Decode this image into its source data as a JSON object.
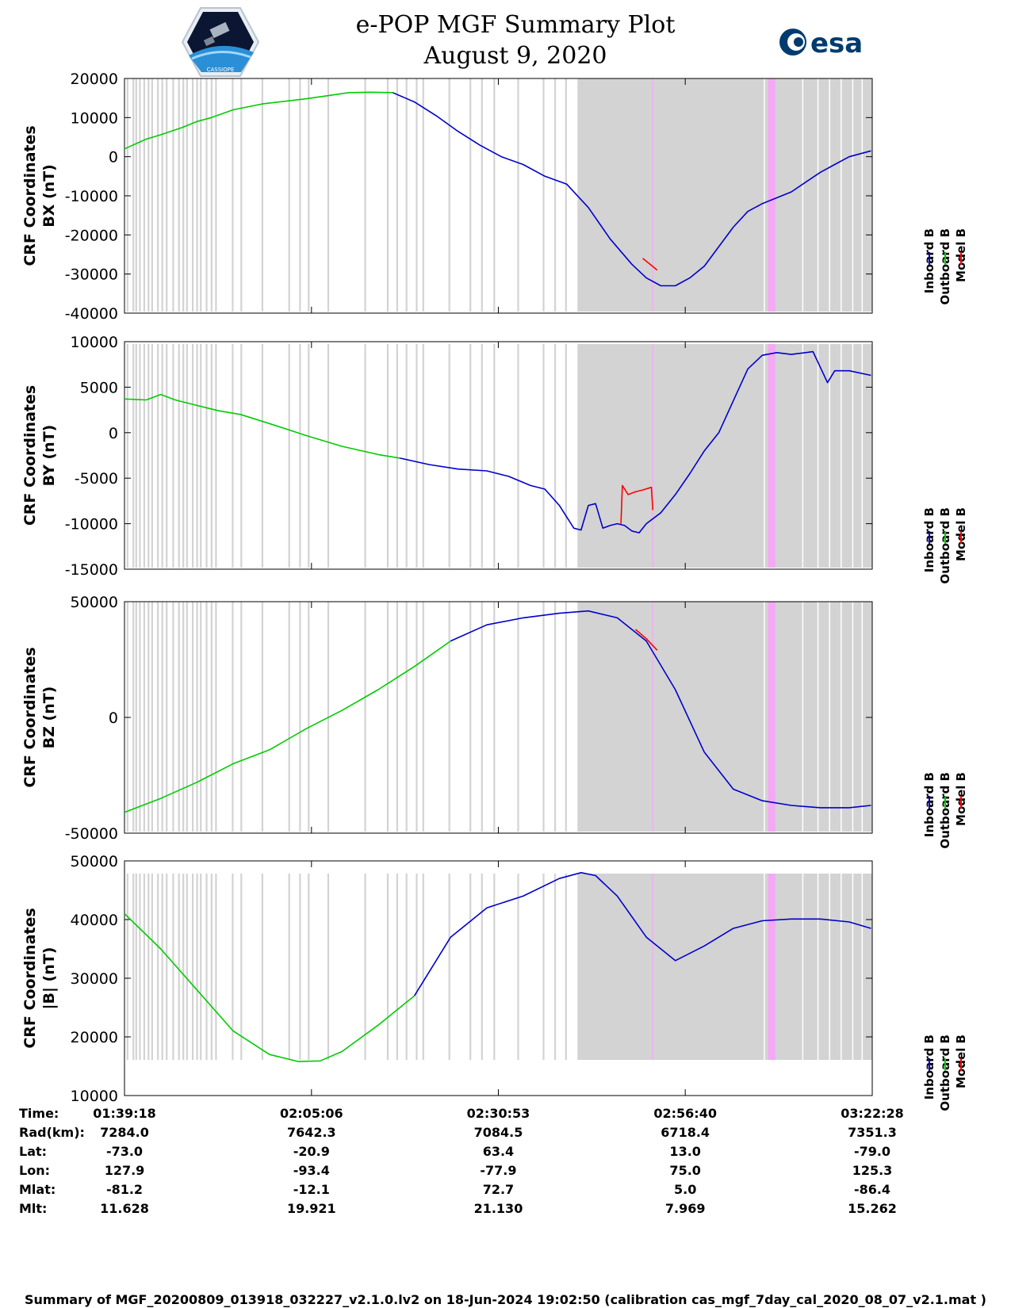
{
  "header": {
    "title_line1": "e-POP MGF Summary Plot",
    "title_line2": "August 9, 2020",
    "logo_left": "CASSIOPE",
    "logo_right": "esa"
  },
  "chart_data": [
    {
      "type": "line",
      "panel": "BX",
      "ylabel_line1": "CRF Coordinates",
      "ylabel_line2": "BX (nT)",
      "ylim": [
        -40000,
        20000
      ],
      "yticks": [
        20000,
        10000,
        0,
        -10000,
        -20000,
        -30000,
        -40000
      ],
      "xlim_minutes": [
        0,
        103.17
      ],
      "legend": [
        "Inboard B",
        "Outboard B",
        "Model B"
      ],
      "series": [
        {
          "name": "Outboard B",
          "color": "#00cc00",
          "x": [
            0,
            3,
            5,
            8,
            10,
            12,
            15,
            19,
            25,
            31,
            34,
            37
          ],
          "y": [
            2000,
            4500,
            5600,
            7500,
            9000,
            10000,
            12000,
            13500,
            14800,
            16400,
            16500,
            16400
          ]
        },
        {
          "name": "Inboard B",
          "color": "#0000cc",
          "x": [
            37,
            40,
            43,
            46,
            49,
            52,
            55,
            58,
            61,
            64,
            67,
            70,
            72,
            74,
            76,
            78,
            80,
            82,
            84,
            86,
            88,
            90,
            92,
            94,
            96,
            98,
            100,
            103
          ],
          "y": [
            16400,
            14000,
            10500,
            6500,
            3000,
            0,
            -2000,
            -5000,
            -7000,
            -13000,
            -21000,
            -27500,
            -31000,
            -33000,
            -33000,
            -31000,
            -28000,
            -23000,
            -18000,
            -14000,
            -12000,
            -10500,
            -9000,
            -6500,
            -4000,
            -2000,
            0,
            1500
          ]
        },
        {
          "name": "Model B",
          "color": "#ff0000",
          "x": [
            71.5,
            72.5,
            73.5
          ],
          "y": [
            -26000,
            -27500,
            -29000
          ]
        }
      ]
    },
    {
      "type": "line",
      "panel": "BY",
      "ylabel_line1": "CRF Coordinates",
      "ylabel_line2": "BY (nT)",
      "ylim": [
        -15000,
        10000
      ],
      "yticks": [
        10000,
        5000,
        0,
        -5000,
        -10000,
        -15000
      ],
      "xlim_minutes": [
        0,
        103.17
      ],
      "legend": [
        "Inboard B",
        "Outboard B",
        "Model B"
      ],
      "series": [
        {
          "name": "Outboard B",
          "color": "#00cc00",
          "x": [
            0,
            3,
            5,
            7,
            9,
            11,
            13,
            16,
            20,
            25,
            30,
            35,
            38
          ],
          "y": [
            3700,
            3600,
            4200,
            3600,
            3200,
            2800,
            2400,
            2000,
            1000,
            -300,
            -1500,
            -2400,
            -2800
          ]
        },
        {
          "name": "Inboard B",
          "color": "#0000cc",
          "x": [
            38,
            42,
            46,
            50,
            53,
            56,
            58,
            60,
            62,
            63,
            64,
            65,
            66,
            67,
            68,
            69,
            70,
            71,
            72,
            74,
            76,
            78,
            80,
            82,
            84,
            86,
            88,
            90,
            92,
            95,
            97,
            98,
            100,
            103
          ],
          "y": [
            -2800,
            -3500,
            -4000,
            -4200,
            -4800,
            -5800,
            -6200,
            -8000,
            -10500,
            -10700,
            -8000,
            -7800,
            -10500,
            -10200,
            -10000,
            -10200,
            -10800,
            -11000,
            -10000,
            -8800,
            -6800,
            -4500,
            -2000,
            0,
            3500,
            7000,
            8500,
            8800,
            8600,
            8900,
            5500,
            6800,
            6800,
            6300
          ]
        },
        {
          "name": "Model B",
          "color": "#ff0000",
          "x": [
            68.5,
            68.7,
            69.5,
            70.5,
            71.5,
            72.7,
            72.9
          ],
          "y": [
            -10000,
            -5800,
            -6800,
            -6500,
            -6300,
            -6000,
            -8500
          ]
        }
      ]
    },
    {
      "type": "line",
      "panel": "BZ",
      "ylabel_line1": "CRF Coordinates",
      "ylabel_line2": "BZ (nT)",
      "ylim": [
        -50000,
        50000
      ],
      "yticks": [
        50000,
        0,
        -50000
      ],
      "xlim_minutes": [
        0,
        103.17
      ],
      "legend": [
        "Inboard B",
        "Outboard B",
        "Model B"
      ],
      "series": [
        {
          "name": "Outboard B",
          "color": "#00cc00",
          "x": [
            0,
            5,
            10,
            15,
            20,
            25,
            30,
            35,
            40,
            45
          ],
          "y": [
            -41000,
            -35000,
            -28000,
            -20000,
            -14000,
            -5000,
            3000,
            12000,
            22000,
            33000
          ]
        },
        {
          "name": "Inboard B",
          "color": "#0000cc",
          "x": [
            45,
            50,
            55,
            60,
            64,
            68,
            72,
            76,
            80,
            84,
            88,
            92,
            96,
            100,
            103
          ],
          "y": [
            33000,
            40000,
            43000,
            45000,
            46000,
            43000,
            33000,
            12000,
            -15000,
            -31000,
            -36000,
            -38000,
            -39000,
            -39000,
            -38000
          ]
        },
        {
          "name": "Model B",
          "color": "#ff0000",
          "x": [
            70.5,
            72,
            73.5
          ],
          "y": [
            38000,
            34000,
            29000
          ]
        }
      ]
    },
    {
      "type": "line",
      "panel": "|B|",
      "ylabel_line1": "CRF Coordinates",
      "ylabel_line2": "|B| (nT)",
      "ylim": [
        10000,
        50000
      ],
      "yticks": [
        50000,
        40000,
        30000,
        20000,
        10000
      ],
      "xlim_minutes": [
        0,
        103.17
      ],
      "legend": [
        "Inboard B",
        "Outboard B",
        "Model B"
      ],
      "series": [
        {
          "name": "Outboard B",
          "color": "#00cc00",
          "x": [
            0,
            5,
            10,
            15,
            20,
            24,
            27,
            30,
            35,
            40
          ],
          "y": [
            41000,
            35000,
            28000,
            21000,
            17000,
            15800,
            15900,
            17500,
            22000,
            27000
          ]
        },
        {
          "name": "Inboard B",
          "color": "#0000cc",
          "x": [
            40,
            45,
            50,
            55,
            60,
            63,
            65,
            68,
            72,
            76,
            80,
            84,
            88,
            92,
            96,
            100,
            103
          ],
          "y": [
            27000,
            37000,
            42000,
            44000,
            47000,
            48000,
            47500,
            44000,
            37000,
            33000,
            35500,
            38500,
            39800,
            40100,
            40100,
            39600,
            38500
          ]
        }
      ]
    }
  ],
  "time_axis": {
    "tick_minutes": [
      0,
      25.8,
      51.58,
      77.37,
      103.17
    ]
  },
  "shading": {
    "color": "#d3d3d3",
    "highlight_color": "#f5a8f5",
    "highlight_band_minutes": [
      88.8,
      89.8
    ],
    "thin_line_minutes": 72.8,
    "dense_band_minutes": [
      62.5,
      103.17
    ],
    "stripe_minutes": [
      0.3,
      1.1,
      1.5,
      2.0,
      2.6,
      3.2,
      3.7,
      4.5,
      5.1,
      5.7,
      6.6,
      7.4,
      8.0,
      8.5,
      9.3,
      9.9,
      10.4,
      11.2,
      11.9,
      12.5,
      14.8,
      16.0,
      18.9,
      22.6,
      24.1,
      25.3,
      28.0,
      33.1,
      36.2,
      37.5,
      38.8,
      40.2,
      41.1,
      44.7,
      47.6,
      49.2,
      50.9,
      54.2,
      57.7,
      59.3,
      60.8
    ]
  },
  "table": {
    "row_labels": [
      "Time:",
      "Rad(km):",
      "Lat:",
      "Lon:",
      "Mlat:",
      "Mlt:"
    ],
    "columns": [
      [
        "01:39:18",
        "7284.0",
        "-73.0",
        "127.9",
        "-81.2",
        "11.628"
      ],
      [
        "02:05:06",
        "7642.3",
        "-20.9",
        "-93.4",
        "-12.1",
        "19.921"
      ],
      [
        "02:30:53",
        "7084.5",
        "63.4",
        "-77.9",
        "72.7",
        "21.130"
      ],
      [
        "02:56:40",
        "6718.4",
        "13.0",
        "75.0",
        "5.0",
        "7.969"
      ],
      [
        "03:22:28",
        "7351.3",
        "-79.0",
        "125.3",
        "-86.4",
        "15.262"
      ]
    ]
  },
  "footer": "Summary of MGF_20200809_013918_032227_v2.1.0.lv2 on 18-Jun-2024 19:02:50 (calibration cas_mgf_7day_cal_2020_08_07_v2.1.mat )"
}
